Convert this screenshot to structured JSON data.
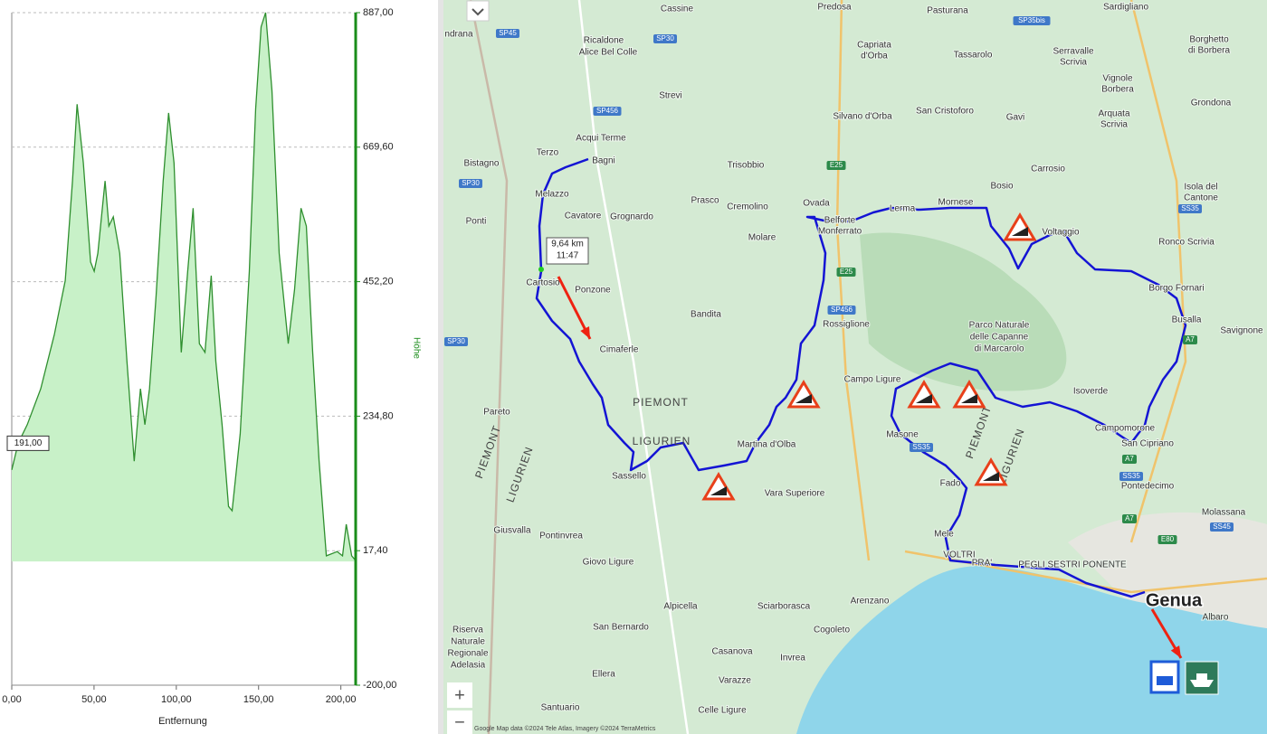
{
  "chart_data": {
    "type": "area",
    "x_label": "Entfernung",
    "y_label": "Höhe",
    "series": [
      {
        "name": "Höhe",
        "color": "#2f8f2f",
        "fill": "#c8f1c8",
        "x": [
          0,
          3.9,
          9.4,
          17.6,
          25.9,
          32.5,
          36.9,
          39.7,
          43.5,
          47.9,
          50.1,
          52.3,
          56.7,
          59,
          61.7,
          65.6,
          70,
          74.4,
          78.2,
          80.9,
          83.7,
          87.6,
          92,
          95.3,
          98.6,
          103,
          106.9,
          110.2,
          114,
          117.4,
          121.2,
          124,
          127.8,
          131.7,
          133.9,
          138.8,
          144.4,
          148.2,
          151.5,
          154.3,
          158.1,
          162.5,
          168,
          171.9,
          175.8,
          179,
          182.9,
          186.8,
          191.2,
          197.8,
          201,
          203.3,
          206.6,
          208.8
        ],
        "values": [
          148,
          191,
          221,
          279,
          367,
          454,
          615,
          739,
          644,
          484,
          469,
          498,
          615,
          542,
          557,
          498,
          323,
          162,
          279,
          221,
          279,
          425,
          615,
          725,
          644,
          338,
          469,
          571,
          352,
          338,
          462,
          323,
          221,
          89,
          82,
          206,
          469,
          732,
          864,
          887,
          761,
          498,
          352,
          440,
          571,
          542,
          338,
          162,
          9,
          16,
          9,
          60,
          9,
          2
        ]
      }
    ],
    "xlim": [
      0,
      209
    ],
    "ylim": [
      -200,
      887
    ],
    "xticks": [
      {
        "value": 0,
        "label": "0,00"
      },
      {
        "value": 50,
        "label": "50,00"
      },
      {
        "value": 100,
        "label": "100,00"
      },
      {
        "value": 150,
        "label": "150,00"
      },
      {
        "value": 200,
        "label": "200,00"
      }
    ],
    "yticks": [
      {
        "value": -200,
        "label": "-200,00"
      },
      {
        "value": 17.4,
        "label": "17,40"
      },
      {
        "value": 234.8,
        "label": "234,80"
      },
      {
        "value": 452.2,
        "label": "452,20"
      },
      {
        "value": 669.6,
        "label": "669,60"
      },
      {
        "value": 887,
        "label": "887,00"
      }
    ],
    "grid": true,
    "cursor": {
      "value": 191,
      "label": "191,00"
    }
  },
  "map": {
    "places": [
      "Cassine",
      "Predosa",
      "Pasturana",
      "Sardigliano",
      "ndrana",
      "Ricaldone",
      "Alice Bel Colle",
      "Capriata",
      "d'Orba",
      "Tassarolo",
      "Serravalle",
      "Scrivia",
      "Borghetto",
      "di Borbera",
      "Vignole",
      "Borbera",
      "Strevi",
      "Silvano d'Orba",
      "San Cristoforo",
      "Gavi",
      "Arquata",
      "Scrivia",
      "Grondona",
      "Acqui Terme",
      "Terzo",
      "Bagni",
      "Bistagno",
      "Trisobbio",
      "Carrosio",
      "Isola del",
      "Cantone",
      "Melazzo",
      "Prasco",
      "Cremolino",
      "Ovada",
      "Lerma",
      "Mornese",
      "Bosio",
      "Cavatore",
      "Grognardo",
      "Belforte",
      "Monferrato",
      "Ponti",
      "Voltaggio",
      "Molare",
      "Ronco Scrivia",
      "Cartosio",
      "Ponzone",
      "Borgo Fornari",
      "Bandita",
      "Rossiglione",
      "Busalla",
      "Savignone",
      "Cimaferle",
      "Campo Ligure",
      "Isoverde",
      "Pareto",
      "Campomorone",
      "Masone",
      "Martina d'Olba",
      "San Cipriano",
      "Sassello",
      "Fado",
      "Pontedecimo",
      "Vara Superiore",
      "Giusvalla",
      "Pontinvrea",
      "Mele",
      "Molassana",
      "Giovo Ligure",
      "Arenzano",
      "Albaro",
      "Alpicella",
      "Sciarborasca",
      "San Bernardo",
      "Cogoleto",
      "Casanova",
      "Invrea",
      "Ellera",
      "Varazze",
      "Santuario",
      "Celle Ligure",
      "Riserva",
      "Naturale",
      "Regionale",
      "Adelasia",
      "Parco Naturale",
      "delle Capanne",
      "di Marcarolo",
      "VOLTRI",
      "PRA'",
      "PEGLI SESTRI PONENTE"
    ],
    "regions": [
      "PIEMONT",
      "LIGURIEN",
      "PIEMONT",
      "LIGURIEN",
      "PIEMONT",
      "LIGURIEN"
    ],
    "city": "Genua",
    "roads": [
      "SP45",
      "SP30",
      "SP35bis",
      "SP456",
      "SP30",
      "E25",
      "E25",
      "SP456",
      "SP30",
      "A7",
      "SS35",
      "SS35",
      "A7",
      "SS35",
      "A7",
      "E80",
      "SS45"
    ],
    "tooltip": {
      "distance": "9,64 km",
      "time": "11:47"
    },
    "zoom": {
      "in": "+",
      "out": "−"
    },
    "attribution": "Google  Map data ©2024 Tele Atlas, Imagery ©2024 TerraMetrics"
  }
}
